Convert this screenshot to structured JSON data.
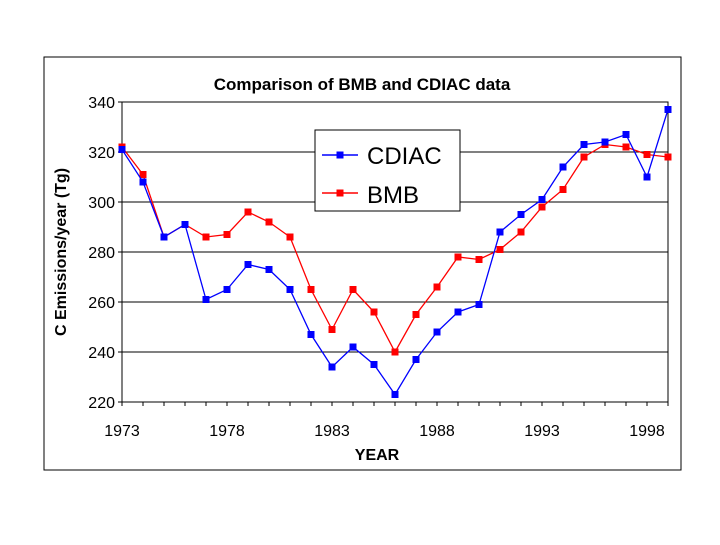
{
  "chart_data": {
    "type": "line",
    "title": "Comparison of BMB and CDIAC data",
    "xlabel": "YEAR",
    "ylabel": "C Emissions/year (Tg)",
    "xlim": [
      1973,
      1999
    ],
    "ylim": [
      220,
      340
    ],
    "xticks": [
      1973,
      1978,
      1983,
      1988,
      1993,
      1998
    ],
    "yticks": [
      220,
      240,
      260,
      280,
      300,
      320,
      340
    ],
    "grid": "horizontal",
    "legend_position": "top-center",
    "series": [
      {
        "name": "CDIAC",
        "color": "#0000ff",
        "marker": "square",
        "x": [
          1973,
          1974,
          1975,
          1976,
          1977,
          1978,
          1979,
          1980,
          1981,
          1982,
          1983,
          1984,
          1985,
          1986,
          1987,
          1988,
          1989,
          1990,
          1991,
          1992,
          1993,
          1994,
          1995,
          1996,
          1997,
          1998,
          1999
        ],
        "y": [
          321,
          308,
          286,
          291,
          261,
          265,
          275,
          273,
          265,
          247,
          234,
          242,
          235,
          223,
          237,
          248,
          256,
          259,
          288,
          295,
          301,
          314,
          323,
          324,
          327,
          310,
          337
        ]
      },
      {
        "name": "BMB",
        "color": "#ff0000",
        "marker": "square",
        "x": [
          1973,
          1974,
          1975,
          1976,
          1977,
          1978,
          1979,
          1980,
          1981,
          1982,
          1983,
          1984,
          1985,
          1986,
          1987,
          1988,
          1989,
          1990,
          1991,
          1992,
          1993,
          1994,
          1995,
          1996,
          1997,
          1998,
          1999
        ],
        "y": [
          322,
          311,
          286,
          291,
          286,
          287,
          296,
          292,
          286,
          265,
          249,
          265,
          256,
          240,
          255,
          266,
          278,
          277,
          281,
          288,
          298,
          305,
          318,
          323,
          322,
          319,
          318
        ]
      }
    ]
  }
}
